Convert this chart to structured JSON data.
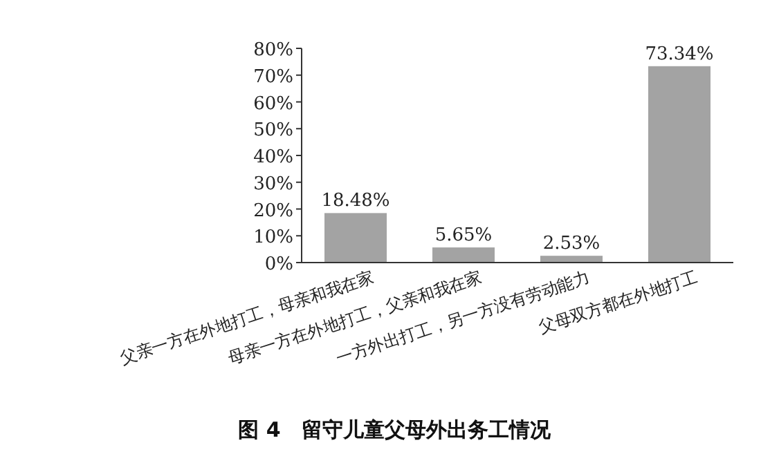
{
  "chart_data": {
    "type": "bar",
    "title": "图 4　留守儿童父母外出务工情况",
    "categories": [
      "父亲一方在外地打工，母亲和我在家",
      "母亲一方在外地打工，父亲和我在家",
      "一方外出打工，另一方没有劳动能力",
      "父母双方都在外地打工"
    ],
    "values": [
      18.48,
      5.65,
      2.53,
      73.34
    ],
    "value_labels": [
      "18.48%",
      "5.65%",
      "2.53%",
      "73.34%"
    ],
    "color": "#a3a3a3",
    "ylim": [
      0,
      80
    ],
    "yticks": [
      {
        "value": 0,
        "label": "0%"
      },
      {
        "value": 10,
        "label": "10%"
      },
      {
        "value": 20,
        "label": "20%"
      },
      {
        "value": 30,
        "label": "30%"
      },
      {
        "value": 40,
        "label": "40%"
      },
      {
        "value": 50,
        "label": "50%"
      },
      {
        "value": 60,
        "label": "60%"
      },
      {
        "value": 70,
        "label": "70%"
      },
      {
        "value": 80,
        "label": "80%"
      }
    ],
    "grid": false
  }
}
